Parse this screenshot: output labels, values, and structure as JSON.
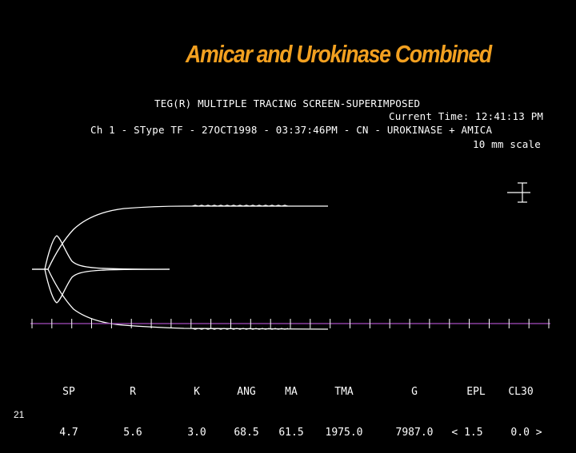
{
  "slide": {
    "title": "Amicar and Urokinase Combined",
    "number": "21"
  },
  "screen": {
    "header_line1": "TEG(R) MULTIPLE TRACING SCREEN-SUPERIMPOSED",
    "current_time": "Current Time: 12:41:13 PM",
    "channel_line": "Ch 1 - SType TF - 27OCT1998 - 03:37:46PM - CN - UROKINASE + AMICA",
    "scale": "10 mm scale"
  },
  "parameters": [
    {
      "label": "SP",
      "value": "4.7"
    },
    {
      "label": "R",
      "value": "5.6"
    },
    {
      "label": "K",
      "value": "3.0"
    },
    {
      "label": "ANG",
      "value": "68.5"
    },
    {
      "label": "MA",
      "value": "61.5"
    },
    {
      "label": "TMA",
      "value": "1975.0"
    },
    {
      "label": "G",
      "value": "7987.0"
    },
    {
      "label": "EPL",
      "value": "< 1.5"
    },
    {
      "label": "CL30",
      "value": "0.0 >"
    }
  ],
  "colors": {
    "title": "#f2a020",
    "timeline": "#8a3fa0",
    "trace": "#ffffff"
  }
}
